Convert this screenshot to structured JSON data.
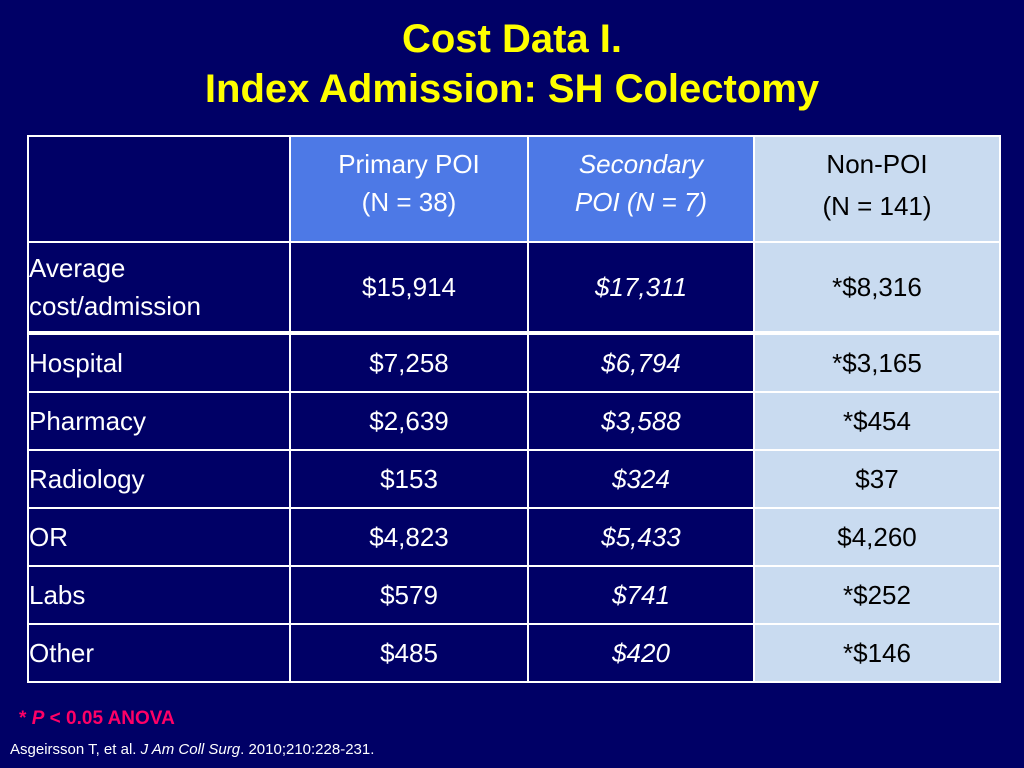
{
  "title": {
    "line1": "Cost Data I.",
    "line2": "Index Admission: SH Colectomy"
  },
  "table": {
    "headers": {
      "primary_line1": "Primary POI",
      "primary_line2": "(N = 38)",
      "secondary_line1": "Secondary",
      "secondary_line2": "POI (N = 7)",
      "nonpoi_line1": "Non-POI",
      "nonpoi_line2": "(N = 141)"
    },
    "average": {
      "label_line1": "Average",
      "label_line2": "cost/admission",
      "primary": "$15,914",
      "secondary": "$17,311",
      "nonpoi": "*$8,316"
    },
    "rows": [
      {
        "label": "Hospital",
        "primary": "$7,258",
        "secondary": "$6,794",
        "nonpoi": "*$3,165"
      },
      {
        "label": "Pharmacy",
        "primary": "$2,639",
        "secondary": "$3,588",
        "nonpoi": "*$454"
      },
      {
        "label": "Radiology",
        "primary": "$153",
        "secondary": "$324",
        "nonpoi": "$37"
      },
      {
        "label": "OR",
        "primary": "$4,823",
        "secondary": "$5,433",
        "nonpoi": "$4,260"
      },
      {
        "label": "Labs",
        "primary": "$579",
        "secondary": "$741",
        "nonpoi": "*$252"
      },
      {
        "label": "Other",
        "primary": "$485",
        "secondary": "$420",
        "nonpoi": "*$146"
      }
    ]
  },
  "footnote": {
    "star": "* ",
    "p": "P",
    "rest": " < 0.05 ANOVA"
  },
  "citation": {
    "authors": "Asgeirsson T, et al. ",
    "journal": "J Am Coll Surg",
    "rest": ". 2010;210:228-231."
  },
  "colors": {
    "background": "#000066",
    "title": "#ffff00",
    "header_blue": "#4d79e6",
    "light_blue": "#c9dbf0",
    "footnote": "#ff0066"
  }
}
